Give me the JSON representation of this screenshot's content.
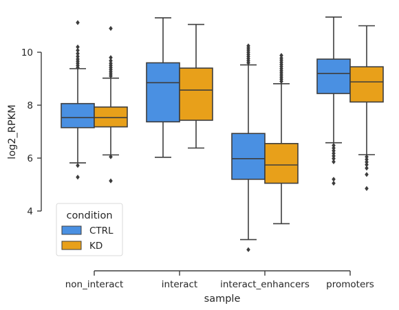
{
  "chart_data": {
    "type": "boxplot",
    "xlabel": "sample",
    "ylabel": "log2_RPKM",
    "categories": [
      "non_interact",
      "interact",
      "interact_enhancers",
      "promoters"
    ],
    "yticks": [
      4,
      6,
      8,
      10
    ],
    "ylim": [
      1.85,
      11.7
    ],
    "legend": {
      "title": "condition",
      "placement": "lower-left"
    },
    "series": [
      {
        "name": "CTRL",
        "color": "#4a90e2",
        "boxes": [
          {
            "whislo": 5.82,
            "q1": 7.15,
            "med": 7.53,
            "q3": 8.06,
            "whishi": 9.38,
            "fliers": [
              5.72,
              5.28,
              9.42,
              9.5,
              9.58,
              9.66,
              9.74,
              9.84,
              9.95,
              10.07,
              10.2,
              11.12
            ]
          },
          {
            "whislo": 6.03,
            "q1": 7.37,
            "med": 8.85,
            "q3": 9.6,
            "whishi": 11.3,
            "fliers": []
          },
          {
            "whislo": 2.92,
            "q1": 5.2,
            "med": 5.98,
            "q3": 6.93,
            "whishi": 9.52,
            "fliers": [
              2.54,
              9.6,
              9.68,
              9.76,
              9.84,
              9.92,
              10.0,
              10.08,
              10.16,
              10.24
            ]
          },
          {
            "whislo": 6.58,
            "q1": 8.44,
            "med": 9.2,
            "q3": 9.74,
            "whishi": 11.33,
            "fliers": [
              6.48,
              6.38,
              6.28,
              6.18,
              6.08,
              5.98,
              5.86,
              5.2,
              5.05
            ]
          }
        ]
      },
      {
        "name": "KD",
        "color": "#e8a01a",
        "boxes": [
          {
            "whislo": 6.12,
            "q1": 7.18,
            "med": 7.53,
            "q3": 7.93,
            "whishi": 9.02,
            "fliers": [
              6.05,
              5.14,
              9.1,
              9.18,
              9.26,
              9.34,
              9.42,
              9.5,
              9.58,
              9.68,
              9.8,
              10.9
            ]
          },
          {
            "whislo": 6.38,
            "q1": 7.43,
            "med": 8.57,
            "q3": 9.4,
            "whishi": 11.05,
            "fliers": []
          },
          {
            "whislo": 3.52,
            "q1": 5.05,
            "med": 5.74,
            "q3": 6.55,
            "whishi": 8.81,
            "fliers": [
              8.9,
              8.98,
              9.06,
              9.14,
              9.22,
              9.3,
              9.38,
              9.46,
              9.54,
              9.62,
              9.7,
              9.78,
              9.88
            ]
          },
          {
            "whislo": 6.13,
            "q1": 8.12,
            "med": 8.88,
            "q3": 9.45,
            "whishi": 11.0,
            "fliers": [
              6.05,
              5.95,
              5.85,
              5.75,
              5.62,
              5.38,
              4.85
            ]
          }
        ]
      }
    ]
  }
}
